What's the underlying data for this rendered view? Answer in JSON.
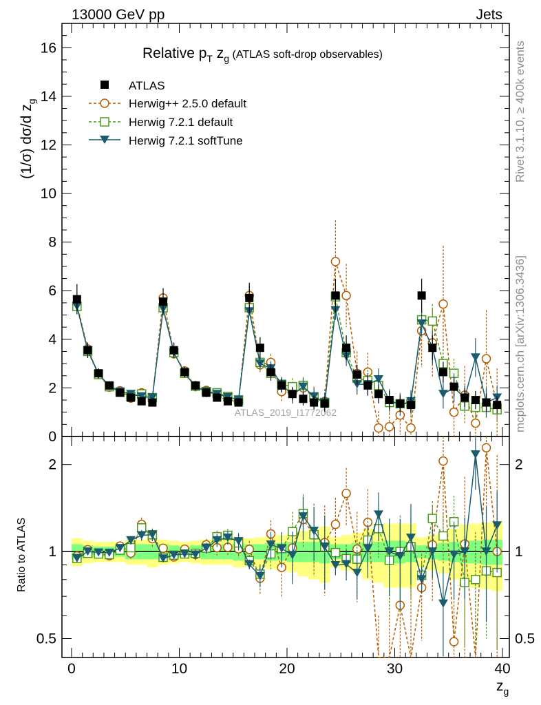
{
  "header": {
    "left": "13000 GeV pp",
    "right": "Jets"
  },
  "side_labels": {
    "rivet": "Rivet 3.1.10, ≥ 400k events",
    "mcplots": "mcplots.cern.ch [arXiv:1306.3436]"
  },
  "watermark": "ATLAS_2019_I1772062",
  "colors": {
    "atlas": "#000000",
    "herwigpp": "#b35c00",
    "herwig721": "#4d9a1a",
    "softtune": "#1a5c6e",
    "band_stat": "#80ff80",
    "band_total": "#ffff80"
  },
  "chart_data": {
    "type": "scatter",
    "title": {
      "prefix": "Relative ",
      "p": "p",
      "p_sub": "T",
      "z": " z",
      "z_sub": "g",
      "suffix": " (ATLAS soft-drop observables)"
    },
    "xlabel": {
      "main": "z",
      "sub": "g"
    },
    "ylabel_top": {
      "pre": "(1/σ) dσ/d z",
      "sub": "g"
    },
    "ylabel_ratio": "Ratio to ATLAS",
    "xlim": [
      -1,
      41
    ],
    "ylim": [
      0,
      17
    ],
    "ratio_ylim": [
      0.43,
      2.5
    ],
    "x_ticks": [
      "0",
      "10",
      "20",
      "30",
      "40"
    ],
    "y_ticks": [
      "0",
      "2",
      "4",
      "6",
      "8",
      "10",
      "12",
      "14",
      "16"
    ],
    "ratio_ticks": [
      "0.5",
      "1",
      "2"
    ],
    "x": [
      0.5,
      1.5,
      2.5,
      3.5,
      4.5,
      5.5,
      6.5,
      7.5,
      8.5,
      9.5,
      10.5,
      11.5,
      12.5,
      13.5,
      14.5,
      15.5,
      16.5,
      17.5,
      18.5,
      19.5,
      20.5,
      21.5,
      22.5,
      23.5,
      24.5,
      25.5,
      26.5,
      27.5,
      28.5,
      29.5,
      30.5,
      31.5,
      32.5,
      33.5,
      34.5,
      35.5,
      36.5,
      37.5,
      38.5,
      39.5
    ],
    "atlas_total_unc": [
      0.11,
      0.09,
      0.08,
      0.08,
      0.08,
      0.1,
      0.1,
      0.12,
      0.1,
      0.09,
      0.08,
      0.09,
      0.1,
      0.1,
      0.1,
      0.12,
      0.11,
      0.12,
      0.13,
      0.14,
      0.15,
      0.18,
      0.2,
      0.22,
      0.12,
      0.14,
      0.16,
      0.2,
      0.22,
      0.25,
      0.25,
      0.25,
      0.12,
      0.14,
      0.16,
      0.2,
      0.24,
      0.25,
      0.26,
      0.27
    ],
    "atlas_stat_unc": [
      0.06,
      0.05,
      0.04,
      0.04,
      0.04,
      0.06,
      0.06,
      0.06,
      0.06,
      0.05,
      0.04,
      0.05,
      0.06,
      0.06,
      0.06,
      0.07,
      0.06,
      0.06,
      0.07,
      0.07,
      0.08,
      0.08,
      0.08,
      0.09,
      0.06,
      0.06,
      0.07,
      0.08,
      0.08,
      0.09,
      0.09,
      0.08,
      0.05,
      0.06,
      0.07,
      0.08,
      0.09,
      0.09,
      0.1,
      0.1
    ],
    "series": [
      {
        "name": "ATLAS",
        "style": "data",
        "values": [
          5.65,
          3.55,
          2.6,
          2.1,
          1.8,
          1.6,
          1.45,
          1.4,
          5.55,
          3.55,
          2.65,
          2.1,
          1.8,
          1.6,
          1.45,
          1.4,
          5.7,
          3.65,
          2.65,
          2.1,
          1.75,
          1.55,
          1.4,
          1.35,
          5.8,
          3.65,
          2.55,
          2.1,
          1.75,
          1.5,
          1.35,
          1.3,
          5.8,
          3.65,
          2.65,
          2.05,
          1.6,
          1.5,
          1.4,
          1.3
        ]
      },
      {
        "name": "Herwig++ 2.5.0 default",
        "style": "herwigpp",
        "values": [
          5.45,
          3.6,
          2.55,
          2.03,
          1.88,
          1.58,
          1.8,
          1.55,
          5.7,
          3.4,
          2.7,
          2.05,
          1.9,
          1.65,
          1.5,
          1.43,
          5.8,
          2.95,
          3.05,
          1.85,
          1.8,
          2.0,
          1.6,
          1.45,
          7.2,
          5.8,
          2.6,
          2.65,
          0.35,
          0.4,
          0.88,
          0.35,
          4.35,
          3.85,
          5.45,
          1.0,
          1.7,
          0.55,
          3.2,
          1.3
        ],
        "errors": [
          0.1,
          0.08,
          0.07,
          0.06,
          0.06,
          0.07,
          0.1,
          0.1,
          0.2,
          0.12,
          0.1,
          0.09,
          0.09,
          0.1,
          0.1,
          0.1,
          0.4,
          0.35,
          0.35,
          0.4,
          0.4,
          0.4,
          0.45,
          0.5,
          1.7,
          1.3,
          0.9,
          0.8,
          0.7,
          0.7,
          0.8,
          0.8,
          1.5,
          1.4,
          2.4,
          1.2,
          1.2,
          1.2,
          2.0,
          1.5
        ]
      },
      {
        "name": "Herwig 7.2.1 default",
        "style": "herwig721",
        "values": [
          5.35,
          3.5,
          2.55,
          2.05,
          1.82,
          1.65,
          1.75,
          1.6,
          5.3,
          3.45,
          2.6,
          2.07,
          1.85,
          1.8,
          1.65,
          1.5,
          5.3,
          3.05,
          2.6,
          2.15,
          2.05,
          2.1,
          1.6,
          1.4,
          5.75,
          3.45,
          2.4,
          2.3,
          2.1,
          1.4,
          1.35,
          1.35,
          4.8,
          4.75,
          3.0,
          2.6,
          1.25,
          1.2,
          1.2,
          1.1
        ],
        "errors": [
          0.08,
          0.07,
          0.06,
          0.05,
          0.05,
          0.06,
          0.07,
          0.08,
          0.1,
          0.09,
          0.08,
          0.08,
          0.08,
          0.09,
          0.09,
          0.1,
          0.2,
          0.25,
          0.3,
          0.3,
          0.35,
          0.35,
          0.35,
          0.4,
          0.4,
          0.4,
          0.4,
          0.45,
          0.45,
          0.45,
          0.45,
          0.45,
          0.5,
          0.7,
          0.6,
          0.6,
          0.5,
          0.5,
          0.5,
          0.5
        ]
      },
      {
        "name": "Herwig 7.2.1 softTune",
        "style": "softtune",
        "values": [
          5.35,
          3.55,
          2.58,
          2.08,
          1.85,
          1.75,
          1.65,
          1.6,
          5.25,
          3.45,
          2.6,
          2.05,
          1.85,
          1.75,
          1.62,
          1.52,
          5.15,
          3.0,
          2.8,
          2.15,
          1.7,
          2.05,
          1.65,
          1.4,
          5.2,
          3.3,
          2.15,
          2.15,
          2.35,
          1.5,
          1.3,
          1.45,
          4.65,
          3.65,
          1.75,
          2.0,
          1.6,
          3.25,
          1.4,
          1.6
        ],
        "errors": [
          0.08,
          0.07,
          0.06,
          0.05,
          0.05,
          0.06,
          0.07,
          0.08,
          0.1,
          0.09,
          0.08,
          0.08,
          0.08,
          0.09,
          0.09,
          0.1,
          0.2,
          0.25,
          0.3,
          0.3,
          0.35,
          0.35,
          0.35,
          0.4,
          0.4,
          0.4,
          0.4,
          0.45,
          0.45,
          0.45,
          0.45,
          0.45,
          0.5,
          0.7,
          0.6,
          0.6,
          0.5,
          0.8,
          0.6,
          0.5
        ]
      }
    ]
  }
}
